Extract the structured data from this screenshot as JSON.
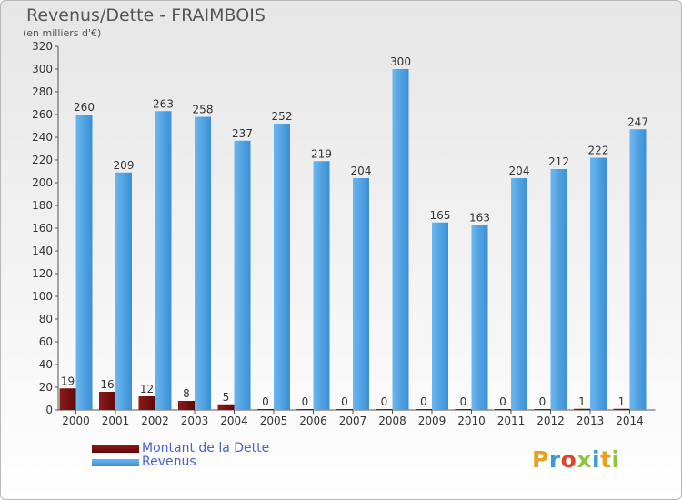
{
  "header": {
    "title": "Revenus/Dette - FRAIMBOIS",
    "subtitle": "(en milliers d'€)"
  },
  "logo": {
    "text": "Proxiti"
  },
  "colors": {
    "debt": "#7a1010",
    "revenue": "#3f97dc",
    "axis_text": "#333333",
    "legend_text": "#4a5fcf"
  },
  "chart_data": {
    "type": "bar",
    "title": "Revenus/Dette - FRAIMBOIS",
    "subtitle": "(en milliers d'€)",
    "xlabel": "",
    "ylabel": "",
    "ylim": [
      0,
      320
    ],
    "ytick_step": 20,
    "grid": false,
    "legend_position": "bottom-left",
    "categories": [
      "2000",
      "2001",
      "2002",
      "2003",
      "2004",
      "2005",
      "2006",
      "2007",
      "2008",
      "2009",
      "2010",
      "2011",
      "2012",
      "2013",
      "2014"
    ],
    "series": [
      {
        "name": "Montant de la Dette",
        "values": [
          19,
          16,
          12,
          8,
          5,
          0,
          0,
          0,
          0,
          0,
          0,
          0,
          0,
          1,
          1
        ]
      },
      {
        "name": "Revenus",
        "values": [
          260,
          209,
          263,
          258,
          237,
          252,
          219,
          204,
          300,
          165,
          163,
          204,
          212,
          222,
          247
        ]
      }
    ]
  }
}
